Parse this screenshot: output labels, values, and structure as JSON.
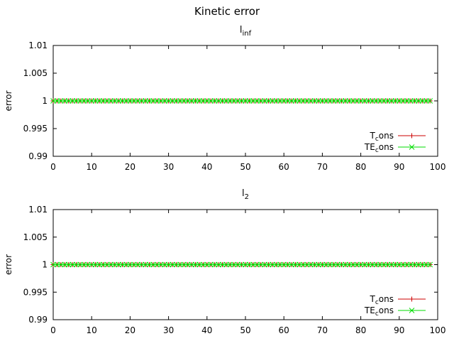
{
  "figure": {
    "title": "Kinetic error"
  },
  "colors": {
    "t_cons": "#cc0000",
    "te_cons": "#00dd00",
    "axis": "#000000"
  },
  "chart_data": [
    {
      "type": "line",
      "title_main": "l",
      "title_sub": "inf",
      "ylabel": "error",
      "xlim": [
        0,
        100
      ],
      "ylim": [
        0.99,
        1.01
      ],
      "x_ticks": [
        "0",
        "10",
        "20",
        "30",
        "40",
        "50",
        "60",
        "70",
        "80",
        "90",
        "100"
      ],
      "y_ticks": [
        "0.99",
        "0.995",
        "1",
        "1.005",
        "1.01"
      ],
      "legend_position": "bottom-right",
      "x_start": 0,
      "x_end": 98,
      "x_step": 1,
      "series": [
        {
          "name_main": "T",
          "name_sub": "c",
          "name_tail": "ons",
          "marker": "plus",
          "color": "#cc0000",
          "constant_y": 1
        },
        {
          "name_main": "TE",
          "name_sub": "c",
          "name_tail": "ons",
          "marker": "cross",
          "color": "#00dd00",
          "constant_y": 1
        }
      ]
    },
    {
      "type": "line",
      "title_main": "l",
      "title_sub": "2",
      "ylabel": "error",
      "xlim": [
        0,
        100
      ],
      "ylim": [
        0.99,
        1.01
      ],
      "x_ticks": [
        "0",
        "10",
        "20",
        "30",
        "40",
        "50",
        "60",
        "70",
        "80",
        "90",
        "100"
      ],
      "y_ticks": [
        "0.99",
        "0.995",
        "1",
        "1.005",
        "1.01"
      ],
      "legend_position": "bottom-right",
      "x_start": 0,
      "x_end": 98,
      "x_step": 1,
      "series": [
        {
          "name_main": "T",
          "name_sub": "c",
          "name_tail": "ons",
          "marker": "plus",
          "color": "#cc0000",
          "constant_y": 1
        },
        {
          "name_main": "TE",
          "name_sub": "c",
          "name_tail": "ons",
          "marker": "cross",
          "color": "#00dd00",
          "constant_y": 1
        }
      ]
    }
  ]
}
